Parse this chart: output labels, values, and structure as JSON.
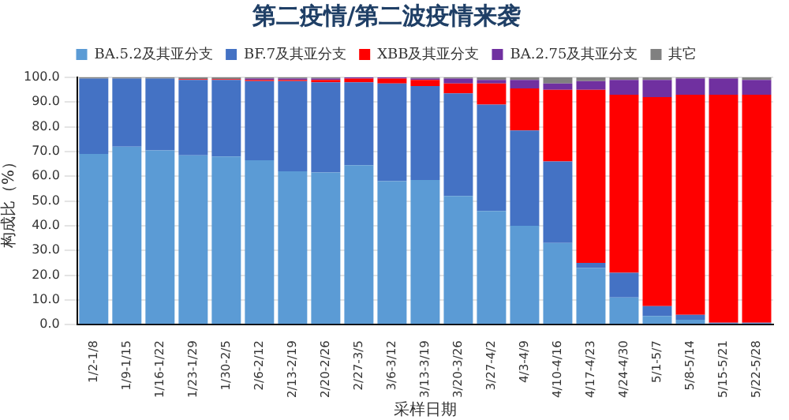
{
  "chart_data": {
    "type": "bar",
    "stacked": true,
    "title": "第二疫情/第二波疫情来袭",
    "xlabel": "采样日期",
    "ylabel": "构成比（%）",
    "categories": [
      "1/2-1/8",
      "1/9-1/15",
      "1/16-1/22",
      "1/23-1/29",
      "1/30-2/5",
      "2/6-2/12",
      "2/13-2/19",
      "2/20-2/26",
      "2/27-3/5",
      "3/6-3/12",
      "3/13-3/19",
      "3/20-3/26",
      "3/27-4/2",
      "4/3-4/9",
      "4/10-4/16",
      "4/17-4/23",
      "4/24-4/30",
      "5/1-5/7",
      "5/8-5/14",
      "5/15-5/21",
      "5/22-5/28"
    ],
    "series": [
      {
        "name": "BA.5.2及其亚分支",
        "color": "#5b9bd5",
        "values": [
          69,
          72,
          70.5,
          68.5,
          68,
          66.5,
          62,
          61.5,
          64.5,
          58,
          58.5,
          52,
          46,
          40,
          33,
          23,
          11,
          3.5,
          2,
          0.5,
          0.5
        ]
      },
      {
        "name": "BF.7及其亚分支",
        "color": "#4472c4",
        "values": [
          30.5,
          27.5,
          29,
          30.5,
          31,
          32,
          36.5,
          36.5,
          33.5,
          39.5,
          38,
          41.5,
          43,
          38.5,
          33,
          2,
          10,
          4,
          2,
          0.3,
          0.3
        ]
      },
      {
        "name": "XBB及其亚分支",
        "color": "#ff0000",
        "values": [
          0,
          0,
          0,
          0.3,
          0.3,
          0.5,
          0.5,
          1,
          1.5,
          2,
          2.5,
          4,
          8.5,
          17,
          29,
          70,
          72,
          84.5,
          89,
          92.2,
          92.2
        ]
      },
      {
        "name": "BA.2.75及其亚分支",
        "color": "#7030a0",
        "values": [
          0,
          0,
          0,
          0,
          0,
          0.5,
          0.5,
          0.5,
          0.5,
          0.5,
          0.5,
          2,
          1.5,
          3.5,
          2.5,
          3.5,
          6,
          7,
          6.5,
          6.5,
          6
        ]
      },
      {
        "name": "其它",
        "color": "#808080",
        "values": [
          0.5,
          0.5,
          0.5,
          0.7,
          0.7,
          0.7,
          0.7,
          0.7,
          0.2,
          0.2,
          0.5,
          0.5,
          1,
          1,
          2.5,
          1.5,
          1,
          1,
          0.5,
          0.5,
          1
        ]
      }
    ],
    "ylim": [
      0,
      100
    ],
    "yticks": [
      {
        "value": 0,
        "label": "0.0"
      },
      {
        "value": 10,
        "label": "10.0"
      },
      {
        "value": 20,
        "label": "20.0"
      },
      {
        "value": 30,
        "label": "30.0"
      },
      {
        "value": 40,
        "label": "40.0"
      },
      {
        "value": 50,
        "label": "50.0"
      },
      {
        "value": 60,
        "label": "60.0"
      },
      {
        "value": 70,
        "label": "70.0"
      },
      {
        "value": 80,
        "label": "80.0"
      },
      {
        "value": 90,
        "label": "90.0"
      },
      {
        "value": 100,
        "label": "100.0"
      }
    ],
    "grid": "y",
    "legend": "top"
  }
}
